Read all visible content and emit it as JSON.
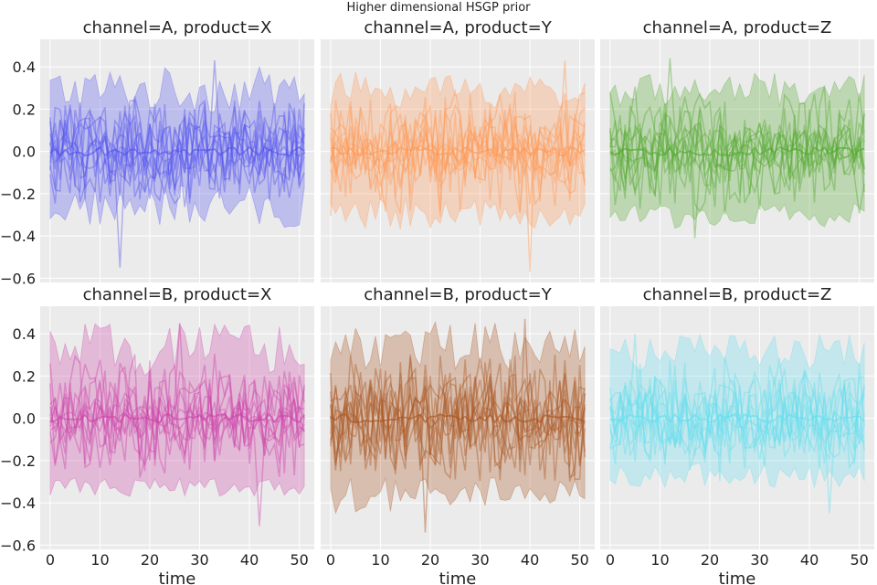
{
  "figure_title": "Higher dimensional HSGP prior",
  "chart_data": [
    {
      "type": "line",
      "title": "channel=A, product=X",
      "xlabel": "",
      "color": "#5555ee",
      "xlim": [
        -2,
        53
      ],
      "ylim": [
        -0.62,
        0.53
      ],
      "xticks": [
        0,
        10,
        20,
        30,
        40,
        50
      ],
      "yticks": [
        "0.4",
        "0.2",
        "0.0",
        "−0.2",
        "−0.4",
        "−0.6"
      ],
      "ytick_values": [
        0.4,
        0.2,
        0.0,
        -0.2,
        -0.4,
        -0.6
      ],
      "n_points": 52,
      "band_upper_range": [
        0.18,
        0.4
      ],
      "band_lower_range": [
        -0.36,
        -0.16
      ],
      "mean_level": 0.0,
      "n_samples": 10,
      "notable_extremes": {
        "max": 0.43,
        "min": -0.55
      },
      "grid": true
    },
    {
      "type": "line",
      "title": "channel=A, product=Y",
      "xlabel": "",
      "color": "#ff9955",
      "xlim": [
        -2,
        53
      ],
      "ylim": [
        -0.62,
        0.53
      ],
      "xticks": [
        0,
        10,
        20,
        30,
        40,
        50
      ],
      "yticks": [
        "0.4",
        "0.2",
        "0.0",
        "−0.2",
        "−0.4",
        "−0.6"
      ],
      "ytick_values": [
        0.4,
        0.2,
        0.0,
        -0.2,
        -0.4,
        -0.6
      ],
      "n_points": 52,
      "band_upper_range": [
        0.2,
        0.38
      ],
      "band_lower_range": [
        -0.37,
        -0.22
      ],
      "mean_level": 0.0,
      "n_samples": 10,
      "notable_extremes": {
        "max": 0.43,
        "min": -0.57
      },
      "grid": true
    },
    {
      "type": "line",
      "title": "channel=A, product=Z",
      "xlabel": "",
      "color": "#55aa33",
      "xlim": [
        -2,
        53
      ],
      "ylim": [
        -0.62,
        0.53
      ],
      "xticks": [
        0,
        10,
        20,
        30,
        40,
        50
      ],
      "yticks": [
        "0.4",
        "0.2",
        "0.0",
        "−0.2",
        "−0.4",
        "−0.6"
      ],
      "ytick_values": [
        0.4,
        0.2,
        0.0,
        -0.2,
        -0.4,
        -0.6
      ],
      "n_points": 52,
      "band_upper_range": [
        0.2,
        0.37
      ],
      "band_lower_range": [
        -0.37,
        -0.24
      ],
      "mean_level": 0.0,
      "n_samples": 10,
      "notable_extremes": {
        "max": 0.44,
        "min": -0.41
      },
      "grid": true
    },
    {
      "type": "line",
      "title": "channel=B, product=X",
      "xlabel": "time",
      "color": "#cc44aa",
      "xlim": [
        -2,
        53
      ],
      "ylim": [
        -0.62,
        0.53
      ],
      "xticks": [
        0,
        10,
        20,
        30,
        40,
        50
      ],
      "yticks": [
        "0.4",
        "0.2",
        "0.0",
        "−0.2",
        "−0.4",
        "−0.6"
      ],
      "ytick_values": [
        0.4,
        0.2,
        0.0,
        -0.2,
        -0.4,
        -0.6
      ],
      "n_points": 52,
      "band_upper_range": [
        0.2,
        0.45
      ],
      "band_lower_range": [
        -0.37,
        -0.28
      ],
      "mean_level": 0.0,
      "n_samples": 10,
      "notable_extremes": {
        "max": 0.45,
        "min": -0.51
      },
      "grid": true
    },
    {
      "type": "line",
      "title": "channel=B, product=Y",
      "xlabel": "time",
      "color": "#aa5522",
      "xlim": [
        -2,
        53
      ],
      "ylim": [
        -0.62,
        0.53
      ],
      "xticks": [
        0,
        10,
        20,
        30,
        40,
        50
      ],
      "yticks": [
        "0.4",
        "0.2",
        "0.0",
        "−0.2",
        "−0.4",
        "−0.6"
      ],
      "ytick_values": [
        0.4,
        0.2,
        0.0,
        -0.2,
        -0.4,
        -0.6
      ],
      "n_points": 52,
      "band_upper_range": [
        0.22,
        0.46
      ],
      "band_lower_range": [
        -0.45,
        -0.28
      ],
      "mean_level": 0.0,
      "n_samples": 10,
      "notable_extremes": {
        "max": 0.47,
        "min": -0.54
      },
      "grid": true
    },
    {
      "type": "line",
      "title": "channel=B, product=Z",
      "xlabel": "time",
      "color": "#66ddee",
      "xlim": [
        -2,
        53
      ],
      "ylim": [
        -0.62,
        0.53
      ],
      "xticks": [
        0,
        10,
        20,
        30,
        40,
        50
      ],
      "yticks": [
        "0.4",
        "0.2",
        "0.0",
        "−0.2",
        "−0.4",
        "−0.6"
      ],
      "ytick_values": [
        0.4,
        0.2,
        0.0,
        -0.2,
        -0.4,
        -0.6
      ],
      "n_points": 52,
      "band_upper_range": [
        0.22,
        0.4
      ],
      "band_lower_range": [
        -0.33,
        -0.21
      ],
      "mean_level": 0.0,
      "n_samples": 10,
      "notable_extremes": {
        "max": 0.4,
        "min": -0.45
      },
      "grid": true
    }
  ]
}
